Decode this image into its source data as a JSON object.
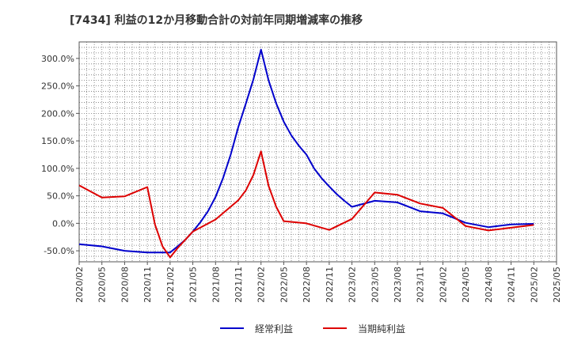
{
  "chart_data": {
    "type": "line",
    "title": "[7434]  利益の12か月移動合計の対前年同期増減率の推移",
    "xlabel": "",
    "ylabel": "",
    "x_ticks": [
      "2020/02",
      "2020/05",
      "2020/08",
      "2020/11",
      "2021/02",
      "2021/05",
      "2021/08",
      "2021/11",
      "2022/02",
      "2022/05",
      "2022/08",
      "2022/11",
      "2023/02",
      "2023/05",
      "2023/08",
      "2023/11",
      "2024/02",
      "2024/05",
      "2024/08",
      "2024/11",
      "2025/02",
      "2025/05"
    ],
    "y_ticks": [
      {
        "value": -50,
        "label": "-50.0%"
      },
      {
        "value": 0,
        "label": "0.0%"
      },
      {
        "value": 50,
        "label": "50.0%"
      },
      {
        "value": 100,
        "label": "100.0%"
      },
      {
        "value": 150,
        "label": "150.0%"
      },
      {
        "value": 200,
        "label": "200.0%"
      },
      {
        "value": 250,
        "label": "250.0%"
      },
      {
        "value": 300,
        "label": "300.0%"
      }
    ],
    "ylim": [
      -70,
      330
    ],
    "grid": true,
    "legend_position": "bottom",
    "series": [
      {
        "name": "経常利益",
        "color": "#0000cc",
        "x": [
          "2020/02",
          "2020/05",
          "2020/08",
          "2020/11",
          "2021/01",
          "2021/02",
          "2021/03",
          "2021/04",
          "2021/05",
          "2021/06",
          "2021/07",
          "2021/08",
          "2021/09",
          "2021/10",
          "2021/11",
          "2021/12",
          "2022/01",
          "2022/02",
          "2022/03",
          "2022/04",
          "2022/05",
          "2022/06",
          "2022/07",
          "2022/08",
          "2022/09",
          "2022/10",
          "2022/11",
          "2022/12",
          "2023/01",
          "2023/02",
          "2023/05",
          "2023/08",
          "2023/11",
          "2024/02",
          "2024/05",
          "2024/08",
          "2024/11",
          "2025/02"
        ],
        "values": [
          -38,
          -42,
          -50,
          -53,
          -53,
          -53,
          -42,
          -30,
          -15,
          2,
          22,
          48,
          83,
          125,
          175,
          218,
          262,
          316,
          260,
          218,
          185,
          160,
          141,
          125,
          100,
          82,
          67,
          53,
          41,
          30,
          41,
          38,
          22,
          18,
          1,
          -7,
          -2,
          -1
        ]
      },
      {
        "name": "当期純利益",
        "color": "#dd0000",
        "x": [
          "2020/02",
          "2020/05",
          "2020/08",
          "2020/11",
          "2020/12",
          "2021/01",
          "2021/02",
          "2021/03",
          "2021/04",
          "2021/05",
          "2021/08",
          "2021/11",
          "2021/12",
          "2022/01",
          "2022/02",
          "2022/03",
          "2022/04",
          "2022/05",
          "2022/08",
          "2022/11",
          "2023/02",
          "2023/05",
          "2023/08",
          "2023/11",
          "2024/02",
          "2024/05",
          "2024/08",
          "2024/11",
          "2025/02"
        ],
        "values": [
          69,
          47,
          49,
          66,
          -2,
          -42,
          -62,
          -45,
          -30,
          -15,
          7,
          42,
          60,
          88,
          131,
          68,
          30,
          4,
          0,
          -12,
          8,
          56,
          52,
          36,
          28,
          -5,
          -13,
          -8,
          -3
        ]
      }
    ]
  }
}
